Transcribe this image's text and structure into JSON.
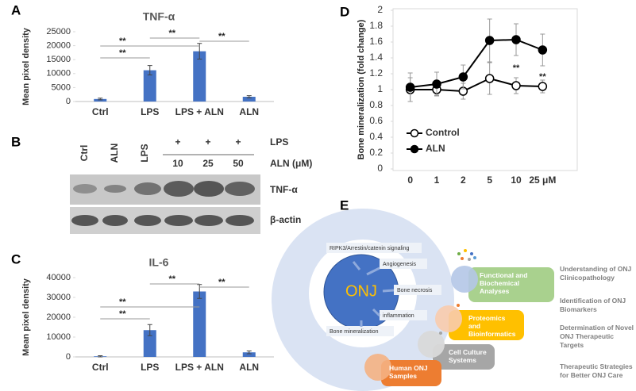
{
  "panel_labels": [
    "A",
    "B",
    "C",
    "D",
    "E"
  ],
  "chart_data": [
    {
      "type": "bar",
      "title": "TNF-α",
      "y_label": "Mean pixel density",
      "categories": [
        "Ctrl",
        "LPS",
        "LPS + ALN",
        "ALN"
      ],
      "values": [
        900,
        11200,
        18000,
        1700
      ],
      "errors": [
        300,
        1700,
        2800,
        400
      ],
      "color": "#4472c4",
      "ylim": [
        0,
        25000
      ],
      "yticks": [
        0,
        5000,
        10000,
        15000,
        20000,
        25000
      ],
      "grid": false,
      "annotations": [
        "**",
        "**",
        "**",
        "**"
      ]
    },
    {
      "type": "bar",
      "title": "IL-6",
      "y_label": "Mean pixel density",
      "categories": [
        "Ctrl",
        "LPS",
        "LPS + ALN",
        "ALN"
      ],
      "values": [
        300,
        13500,
        33000,
        2300
      ],
      "errors": [
        300,
        2800,
        3500,
        700
      ],
      "color": "#4472c4",
      "ylim": [
        0,
        40000
      ],
      "yticks": [
        0,
        10000,
        20000,
        30000,
        40000
      ],
      "grid": false,
      "annotations": [
        "**",
        "**",
        "**",
        "**"
      ]
    },
    {
      "type": "line",
      "y_label": "Bone mineralization (fold change)",
      "categories": [
        "0",
        "1",
        "2",
        "5",
        "10",
        "25 μM"
      ],
      "series": [
        {
          "name": "Control",
          "color": "#000000",
          "fill": "#ffffff",
          "values": [
            1.0,
            1.0,
            0.98,
            1.14,
            1.05,
            1.04
          ],
          "errors": [
            0.15,
            0.07,
            0.1,
            0.2,
            0.1,
            0.08
          ]
        },
        {
          "name": "ALN",
          "color": "#000000",
          "fill": "#000000",
          "values": [
            1.03,
            1.07,
            1.16,
            1.62,
            1.63,
            1.5
          ],
          "errors": [
            0.18,
            0.15,
            0.15,
            0.27,
            0.2,
            0.2
          ]
        }
      ],
      "ylim": [
        0,
        2
      ],
      "yticks": [
        0,
        0.2,
        0.4,
        0.6,
        0.8,
        1,
        1.2,
        1.4,
        1.6,
        1.8,
        2
      ],
      "grid": false,
      "annotations": [
        "**",
        "**"
      ]
    }
  ],
  "blot": {
    "lanes": [
      "Ctrl",
      "ALN",
      "LPS"
    ],
    "lps_marks": [
      "+",
      "+",
      "+"
    ],
    "lps_label": "LPS",
    "aln_label": "ALN (μM)",
    "aln_doses": [
      "10",
      "25",
      "50"
    ],
    "bands": [
      "TNF-α",
      "β-actin"
    ]
  },
  "diagram": {
    "center": "ONJ",
    "factors": [
      "RIPK3/Arrestin/catenin signaling",
      "Angiogenesis",
      "Bone necrosis",
      "inflammation",
      "Bone mineralization"
    ],
    "approaches": [
      [
        "Functional and",
        "Biochemical",
        "Analyses"
      ],
      [
        "Proteomics",
        "and",
        "Bioinformatics"
      ],
      [
        "Cell Culture",
        "Systems"
      ],
      [
        "Human ONJ",
        "Samples"
      ]
    ],
    "goals": [
      [
        "Understanding of ONJ",
        "Clinicopathology"
      ],
      [
        "Identification of ONJ",
        "Biomarkers"
      ],
      [
        "Determination of Novel",
        "ONJ Therapeutic",
        "Targets"
      ],
      [
        "Therapeutic Strategies",
        "for Better ONJ Care"
      ]
    ]
  }
}
